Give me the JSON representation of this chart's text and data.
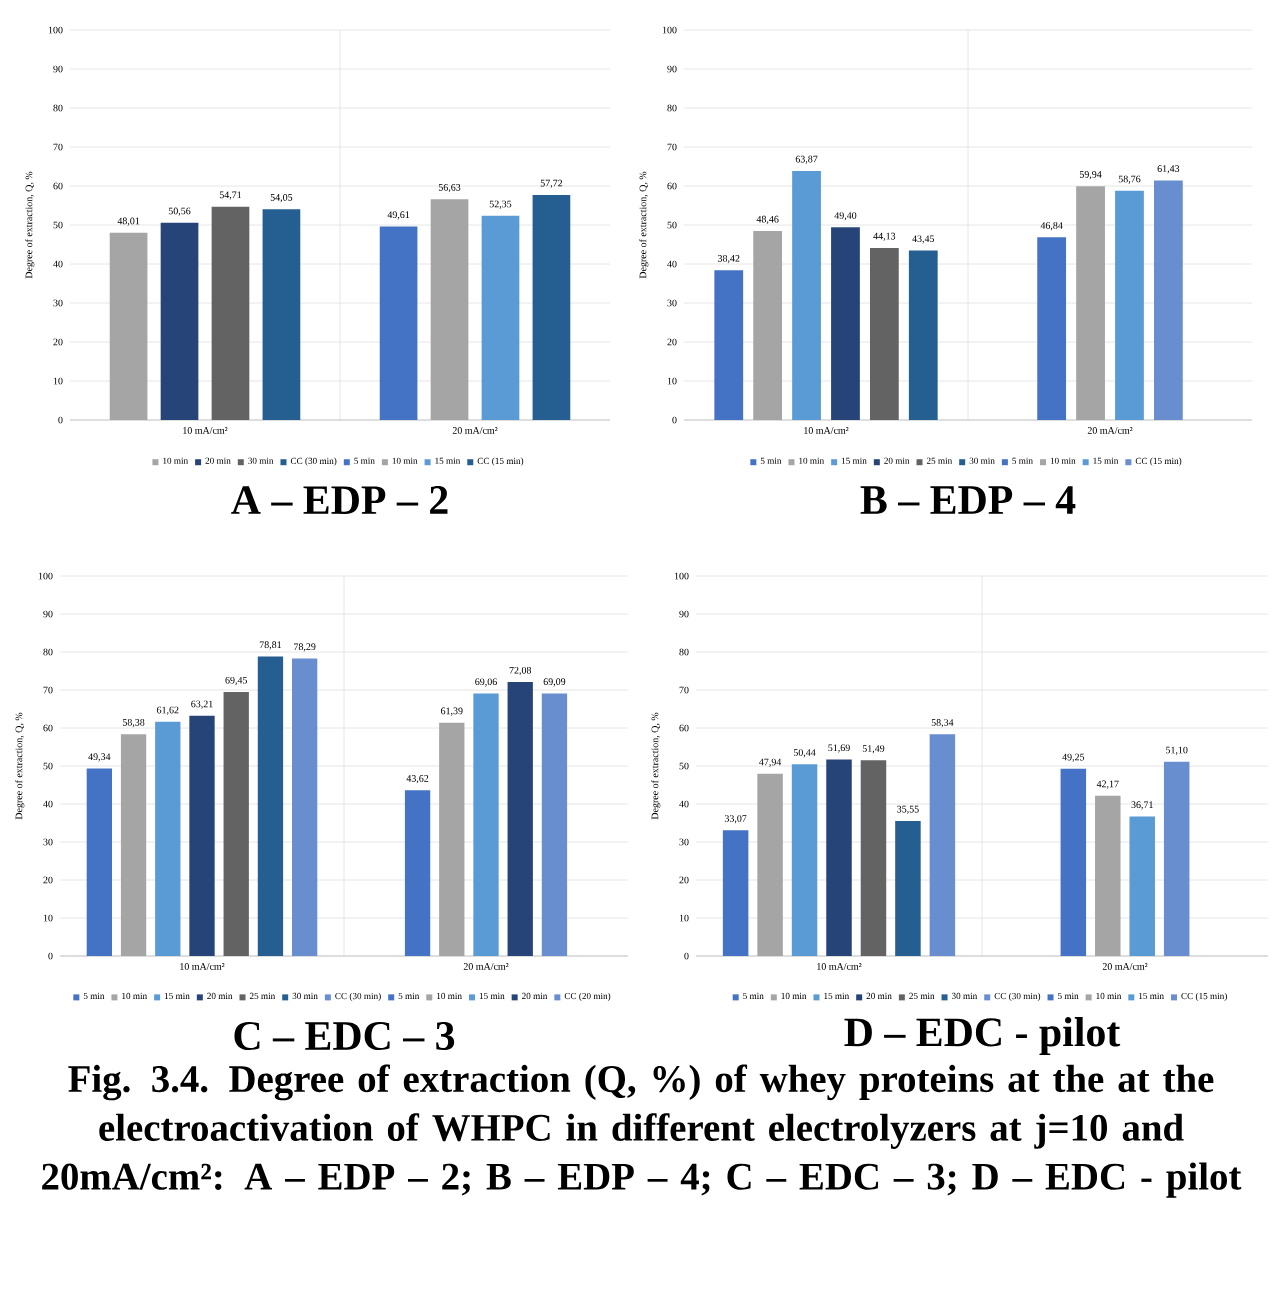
{
  "chart_data": [
    {
      "type": "bar",
      "title": "A – EDP – 2",
      "ylabel": "Degree of extraction, Q, %",
      "categories": [
        "10 mA/cm²",
        "20 mA/cm²"
      ],
      "ylim": [
        0,
        100
      ],
      "yticks": [
        0,
        10,
        20,
        30,
        40,
        50,
        60,
        70,
        80,
        90,
        100
      ],
      "grid": "y",
      "legend": "bottom",
      "series": [
        {
          "name": "10 min",
          "color": "#a5a5a5",
          "values": [
            48.01,
            null
          ],
          "value_labels": [
            "48,01",
            null
          ]
        },
        {
          "name": "20 min",
          "color": "#264478",
          "values": [
            50.56,
            null
          ],
          "value_labels": [
            "50,56",
            null
          ]
        },
        {
          "name": "30 min",
          "color": "#636363",
          "values": [
            54.71,
            null
          ],
          "value_labels": [
            "54,71",
            null
          ]
        },
        {
          "name": "CC (30 min)",
          "color": "#255e91",
          "values": [
            54.05,
            null
          ],
          "value_labels": [
            "54,05",
            null
          ]
        },
        {
          "name": "5 min",
          "color": "#4472c4",
          "values": [
            null,
            49.61
          ],
          "value_labels": [
            null,
            "49,61"
          ]
        },
        {
          "name": "10 min",
          "color": "#a5a5a5",
          "values": [
            null,
            56.63
          ],
          "value_labels": [
            null,
            "56,63"
          ]
        },
        {
          "name": "15 min",
          "color": "#5b9bd5",
          "values": [
            null,
            52.35
          ],
          "value_labels": [
            null,
            "52,35"
          ]
        },
        {
          "name": "CC (15 min)",
          "color": "#255e91",
          "values": [
            null,
            57.72
          ],
          "value_labels": [
            null,
            "57,72"
          ]
        }
      ]
    },
    {
      "type": "bar",
      "title": "B – EDP – 4",
      "ylabel": "Degree of extraction, Q, %",
      "categories": [
        "10 mA/cm²",
        "20 mA/cm²"
      ],
      "ylim": [
        0,
        100
      ],
      "yticks": [
        0,
        10,
        20,
        30,
        40,
        50,
        60,
        70,
        80,
        90,
        100
      ],
      "grid": "y",
      "legend": "bottom",
      "series": [
        {
          "name": "5 min",
          "color": "#4472c4",
          "values": [
            38.42,
            null
          ],
          "value_labels": [
            "38,42",
            null
          ]
        },
        {
          "name": "10 min",
          "color": "#a5a5a5",
          "values": [
            48.46,
            null
          ],
          "value_labels": [
            "48,46",
            null
          ]
        },
        {
          "name": "15 min",
          "color": "#5b9bd5",
          "values": [
            63.87,
            null
          ],
          "value_labels": [
            "63,87",
            null
          ]
        },
        {
          "name": "20 min",
          "color": "#264478",
          "values": [
            49.4,
            null
          ],
          "value_labels": [
            "49,40",
            null
          ]
        },
        {
          "name": "25 min",
          "color": "#636363",
          "values": [
            44.13,
            null
          ],
          "value_labels": [
            "44,13",
            null
          ]
        },
        {
          "name": "30 min",
          "color": "#255e91",
          "values": [
            43.45,
            null
          ],
          "value_labels": [
            "43,45",
            null
          ]
        },
        {
          "name": "5 min",
          "color": "#4472c4",
          "values": [
            null,
            46.84
          ],
          "value_labels": [
            null,
            "46,84"
          ]
        },
        {
          "name": "10 min",
          "color": "#a5a5a5",
          "values": [
            null,
            59.94
          ],
          "value_labels": [
            null,
            "59,94"
          ]
        },
        {
          "name": "15 min",
          "color": "#5b9bd5",
          "values": [
            null,
            58.76
          ],
          "value_labels": [
            null,
            "58,76"
          ]
        },
        {
          "name": "CC (15 min)",
          "color": "#698ed0",
          "values": [
            null,
            61.43
          ],
          "value_labels": [
            null,
            "61,43"
          ]
        }
      ]
    },
    {
      "type": "bar",
      "title": "C – EDC – 3",
      "ylabel": "Degree of extraction, Q, %",
      "categories": [
        "10 mA/cm²",
        "20 mA/cm²"
      ],
      "ylim": [
        0,
        100
      ],
      "yticks": [
        0,
        10,
        20,
        30,
        40,
        50,
        60,
        70,
        80,
        90,
        100
      ],
      "grid": "y",
      "legend": "bottom",
      "series": [
        {
          "name": "5 min",
          "color": "#4472c4",
          "values": [
            49.34,
            null
          ],
          "value_labels": [
            "49,34",
            null
          ]
        },
        {
          "name": "10 min",
          "color": "#a5a5a5",
          "values": [
            58.38,
            null
          ],
          "value_labels": [
            "58,38",
            null
          ]
        },
        {
          "name": "15 min",
          "color": "#5b9bd5",
          "values": [
            61.62,
            null
          ],
          "value_labels": [
            "61,62",
            null
          ]
        },
        {
          "name": "20 min",
          "color": "#264478",
          "values": [
            63.21,
            null
          ],
          "value_labels": [
            "63,21",
            null
          ]
        },
        {
          "name": "25 min",
          "color": "#636363",
          "values": [
            69.45,
            null
          ],
          "value_labels": [
            "69,45",
            null
          ]
        },
        {
          "name": "30 min",
          "color": "#255e91",
          "values": [
            78.81,
            null
          ],
          "value_labels": [
            "78,81",
            null
          ]
        },
        {
          "name": "CC (30 min)",
          "color": "#698ed0",
          "values": [
            78.29,
            null
          ],
          "value_labels": [
            "78,29",
            null
          ]
        },
        {
          "name": "5 min",
          "color": "#4472c4",
          "values": [
            null,
            43.62
          ],
          "value_labels": [
            null,
            "43,62"
          ]
        },
        {
          "name": "10 min",
          "color": "#a5a5a5",
          "values": [
            null,
            61.39
          ],
          "value_labels": [
            null,
            "61,39"
          ]
        },
        {
          "name": "15 min",
          "color": "#5b9bd5",
          "values": [
            null,
            69.06
          ],
          "value_labels": [
            null,
            "69,06"
          ]
        },
        {
          "name": "20 min",
          "color": "#264478",
          "values": [
            null,
            72.08
          ],
          "value_labels": [
            null,
            "72,08"
          ]
        },
        {
          "name": "CC (20 min)",
          "color": "#698ed0",
          "values": [
            null,
            69.09
          ],
          "value_labels": [
            null,
            "69,09"
          ]
        }
      ]
    },
    {
      "type": "bar",
      "title": "D – EDC - pilot",
      "ylabel": "Degree of extraction, Q, %",
      "categories": [
        "10 mA/cm²",
        "20 mA/cm²"
      ],
      "ylim": [
        0,
        100
      ],
      "yticks": [
        0,
        10,
        20,
        30,
        40,
        50,
        60,
        70,
        80,
        90,
        100
      ],
      "grid": "y",
      "legend": "bottom",
      "annotations": [
        "Fig. 3.4. Degree of extraction (Q, %) of whey proteins at the at the electroactivation of WHPC in different electrolyzers at j=10 and 20mA/cm²: A – EDP – 2; B – EDP – 4; C – EDC – 3; D – EDC - pilot"
      ],
      "series": [
        {
          "name": "5 min",
          "color": "#4472c4",
          "values": [
            33.07,
            null
          ],
          "value_labels": [
            "33,07",
            null
          ]
        },
        {
          "name": "10 min",
          "color": "#a5a5a5",
          "values": [
            47.94,
            null
          ],
          "value_labels": [
            "47,94",
            null
          ]
        },
        {
          "name": "15 min",
          "color": "#5b9bd5",
          "values": [
            50.44,
            null
          ],
          "value_labels": [
            "50,44",
            null
          ]
        },
        {
          "name": "20 min",
          "color": "#264478",
          "values": [
            51.69,
            null
          ],
          "value_labels": [
            "51,69",
            null
          ]
        },
        {
          "name": "25 min",
          "color": "#636363",
          "values": [
            51.49,
            null
          ],
          "value_labels": [
            "51,49",
            null
          ]
        },
        {
          "name": "30 min",
          "color": "#255e91",
          "values": [
            35.55,
            null
          ],
          "value_labels": [
            "35,55",
            null
          ]
        },
        {
          "name": "CC (30 min)",
          "color": "#698ed0",
          "values": [
            58.34,
            null
          ],
          "value_labels": [
            "58,34",
            null
          ]
        },
        {
          "name": "5 min",
          "color": "#4472c4",
          "values": [
            null,
            49.25
          ],
          "value_labels": [
            null,
            "49,25"
          ]
        },
        {
          "name": "10 min",
          "color": "#a5a5a5",
          "values": [
            null,
            42.17
          ],
          "value_labels": [
            null,
            "42,17"
          ]
        },
        {
          "name": "15 min",
          "color": "#5b9bd5",
          "values": [
            null,
            36.71
          ],
          "value_labels": [
            null,
            "36,71"
          ]
        },
        {
          "name": "CC (15 min)",
          "color": "#698ed0",
          "values": [
            null,
            51.1
          ],
          "value_labels": [
            null,
            "51,10"
          ]
        }
      ]
    }
  ]
}
